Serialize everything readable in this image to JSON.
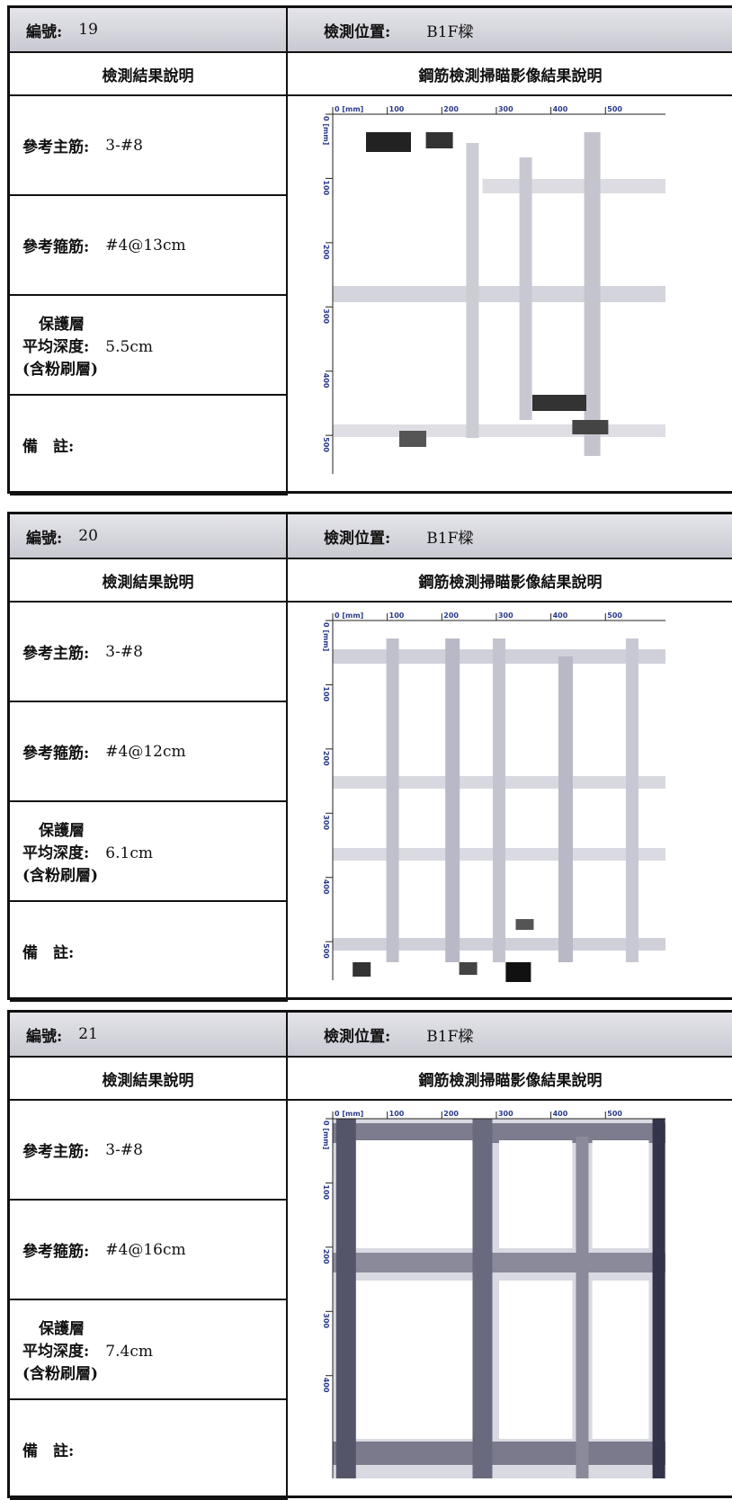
{
  "blocks": [
    {
      "number_label": "編號:",
      "number": "19",
      "location_label": "檢測位置:",
      "location": "B1F樑",
      "result_heading": "檢測結果說明",
      "scan_heading": "鋼筋檢測掃瞄影像結果說明",
      "main_bar_label": "參考主筋:",
      "main_bar": "3-#8",
      "stirrup_label": "參考箍筋:",
      "stirrup": "#4@13cm",
      "cover_label_1": "保護層",
      "cover_label_2": "平均深度:",
      "cover": "5.5cm",
      "cover_note": "(含粉刷層)",
      "remark_label": "備　註:",
      "scan_x_ticks": [
        "0 [mm]",
        "100",
        "200",
        "300",
        "400",
        "500"
      ],
      "scan_y_ticks": [
        "0 [mm]",
        "100",
        "200",
        "300",
        "400",
        "500"
      ]
    },
    {
      "number_label": "編號:",
      "number": "20",
      "location_label": "檢測位置:",
      "location": "B1F樑",
      "result_heading": "檢測結果說明",
      "scan_heading": "鋼筋檢測掃瞄影像結果說明",
      "main_bar_label": "參考主筋:",
      "main_bar": "3-#8",
      "stirrup_label": "參考箍筋:",
      "stirrup": "#4@12cm",
      "cover_label_1": "保護層",
      "cover_label_2": "平均深度:",
      "cover": "6.1cm",
      "cover_note": "(含粉刷層)",
      "remark_label": "備　註:",
      "scan_x_ticks": [
        "0 [mm]",
        "100",
        "200",
        "300",
        "400",
        "500"
      ],
      "scan_y_ticks": [
        "0 [mm]",
        "100",
        "200",
        "300",
        "400",
        "500"
      ]
    },
    {
      "number_label": "編號:",
      "number": "21",
      "location_label": "檢測位置:",
      "location": "B1F樑",
      "result_heading": "檢測結果說明",
      "scan_heading": "鋼筋檢測掃瞄影像結果說明",
      "main_bar_label": "參考主筋:",
      "main_bar": "3-#8",
      "stirrup_label": "參考箍筋:",
      "stirrup": "#4@16cm",
      "cover_label_1": "保護層",
      "cover_label_2": "平均深度:",
      "cover": "7.4cm",
      "cover_note": "(含粉刷層)",
      "remark_label": "備　註:",
      "scan_x_ticks": [
        "0 [mm]",
        "100",
        "200",
        "300",
        "400",
        "500"
      ],
      "scan_y_ticks": [
        "0 [mm]",
        "100",
        "200",
        "300",
        "400"
      ]
    }
  ]
}
